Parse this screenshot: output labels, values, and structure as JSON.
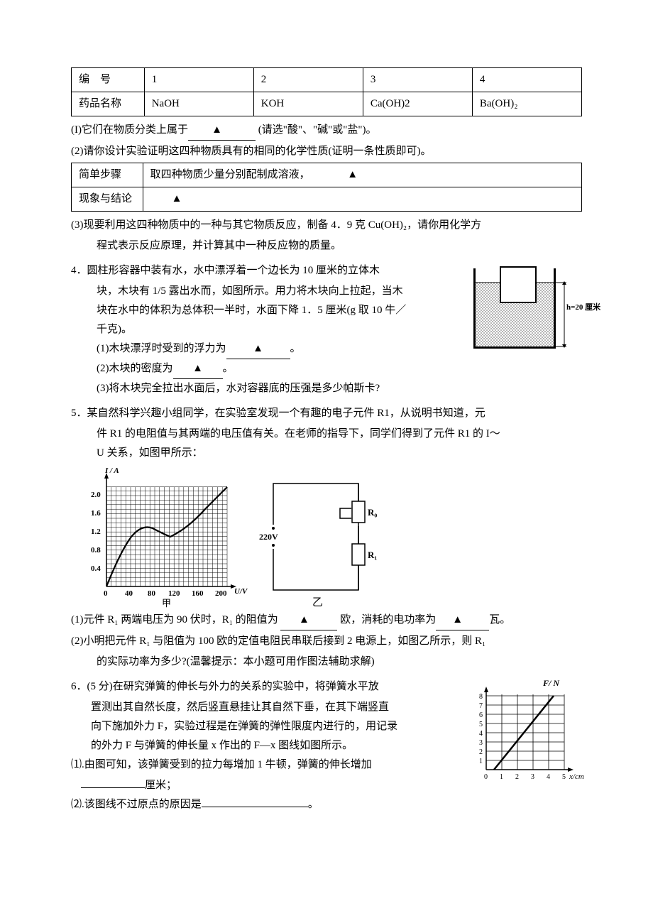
{
  "table1": {
    "headers": [
      "编　号",
      "1",
      "2",
      "3",
      "4"
    ],
    "row_label": "药品名称",
    "cells": [
      "NaOH",
      "KOH",
      "Ca(OH)2",
      "Ba(OH)₂"
    ]
  },
  "q_I_prefix": "(I)它们在物质分类上属于",
  "q_I_suffix": " (请选\"酸\"、\"碱\"或\"盐\")。",
  "q_2_text": "(2)请你设计实验证明这四种物质具有的相同的化学性质(证明一条性质即可)。",
  "table2": {
    "row1_label": "简单步骤",
    "row1_content": "取四种物质少量分别配制成溶液，",
    "row2_label": "现象与结论"
  },
  "q_3_l1": "(3)现要利用这四种物质中的一种与其它物质反应，制备 4．9 克 Cu(OH)₂，请你用化学方",
  "q_3_l2": "程式表示反应原理，并计算其中一种反应物的质量。",
  "q4": {
    "l1": "4．圆柱形容器中装有水，水中漂浮着一个边长为 10 厘米的立体木",
    "l2": "块，木块有 1/5 露出水而，如图所示。用力将木块向上拉起，当木",
    "l3": "块在水中的体积为总体积一半时，水面下降 1．5 厘米(g 取 10 牛／",
    "l4": "千克)。",
    "s1": "(1)木块漂浮时受到的浮力为",
    "s1_end": "。",
    "s2": "(2)木块的密度为",
    "s2_end": "。",
    "s3": "(3)将木块完全拉出水面后，水对容器底的压强是多少帕斯卡?",
    "diagram_h_label": "h=20 厘米"
  },
  "q5": {
    "l1": "5．某自然科学兴趣小组同学，在实验室发现一个有趣的电子元件 R1，从说明书知道，元",
    "l2": "件 R1 的电阻值与其两端的电压值有关。在老师的指导下，同学们得到了元件 R1 的 I～",
    "l3": "U 关系，如图甲所示：",
    "chart": {
      "ylabel": "I / A",
      "xlabel": "U/V",
      "caption_left": "甲",
      "caption_right": "乙",
      "y_ticks": [
        "0.4",
        "0.8",
        "1.2",
        "1.6",
        "2.0"
      ],
      "x_ticks": [
        "0",
        "40",
        "80",
        "120",
        "160",
        "200"
      ],
      "circuit_v": "220V",
      "r0": "R₀",
      "r1": "R₁"
    },
    "s1_a": "(1)元件 R₁ 两端电压为 90 伏时，R₁ 的阻值为 ",
    "s1_b": "  欧，消耗的电功率为",
    "s1_c": "瓦。",
    "s2_a": "(2)小明把元件 R₁ 与阻值为 100 欧的定值电阻民串联后接到 2 电源上，如图乙所示，则 R₁",
    "s2_b": "的实际功率为多少?(温馨提示：本小题可用作图法辅助求解)"
  },
  "q6": {
    "l1": "6．(5 分)在研究弹簧的伸长与外力的关系的实验中，将弹簧水平放",
    "l2": "置测出其自然长度，然后竖直悬挂让其自然下垂，在其下端竖直",
    "l3": "向下施加外力 F，实验过程是在弹簧的弹性限度内进行的，用记录",
    "l4": "的外力 F 与弹簧的伸长量 x 作出的 F—x 图线如图所示。",
    "s1_a": "⑴.由图可知，该弹簧受到的拉力每增加 1 牛顿，弹簧的伸长增加",
    "s1_b": "厘米；",
    "s2_a": "⑵.该图线不过原点的原因是",
    "s2_b": "。",
    "chart": {
      "ylabel": "F/ N",
      "xlabel": "x/cm",
      "y_ticks": [
        "1",
        "2",
        "3",
        "4",
        "5",
        "6",
        "7",
        "8"
      ],
      "x_ticks": [
        "0",
        "1",
        "2",
        "3",
        "4",
        "5"
      ]
    }
  },
  "triangle": "▲"
}
